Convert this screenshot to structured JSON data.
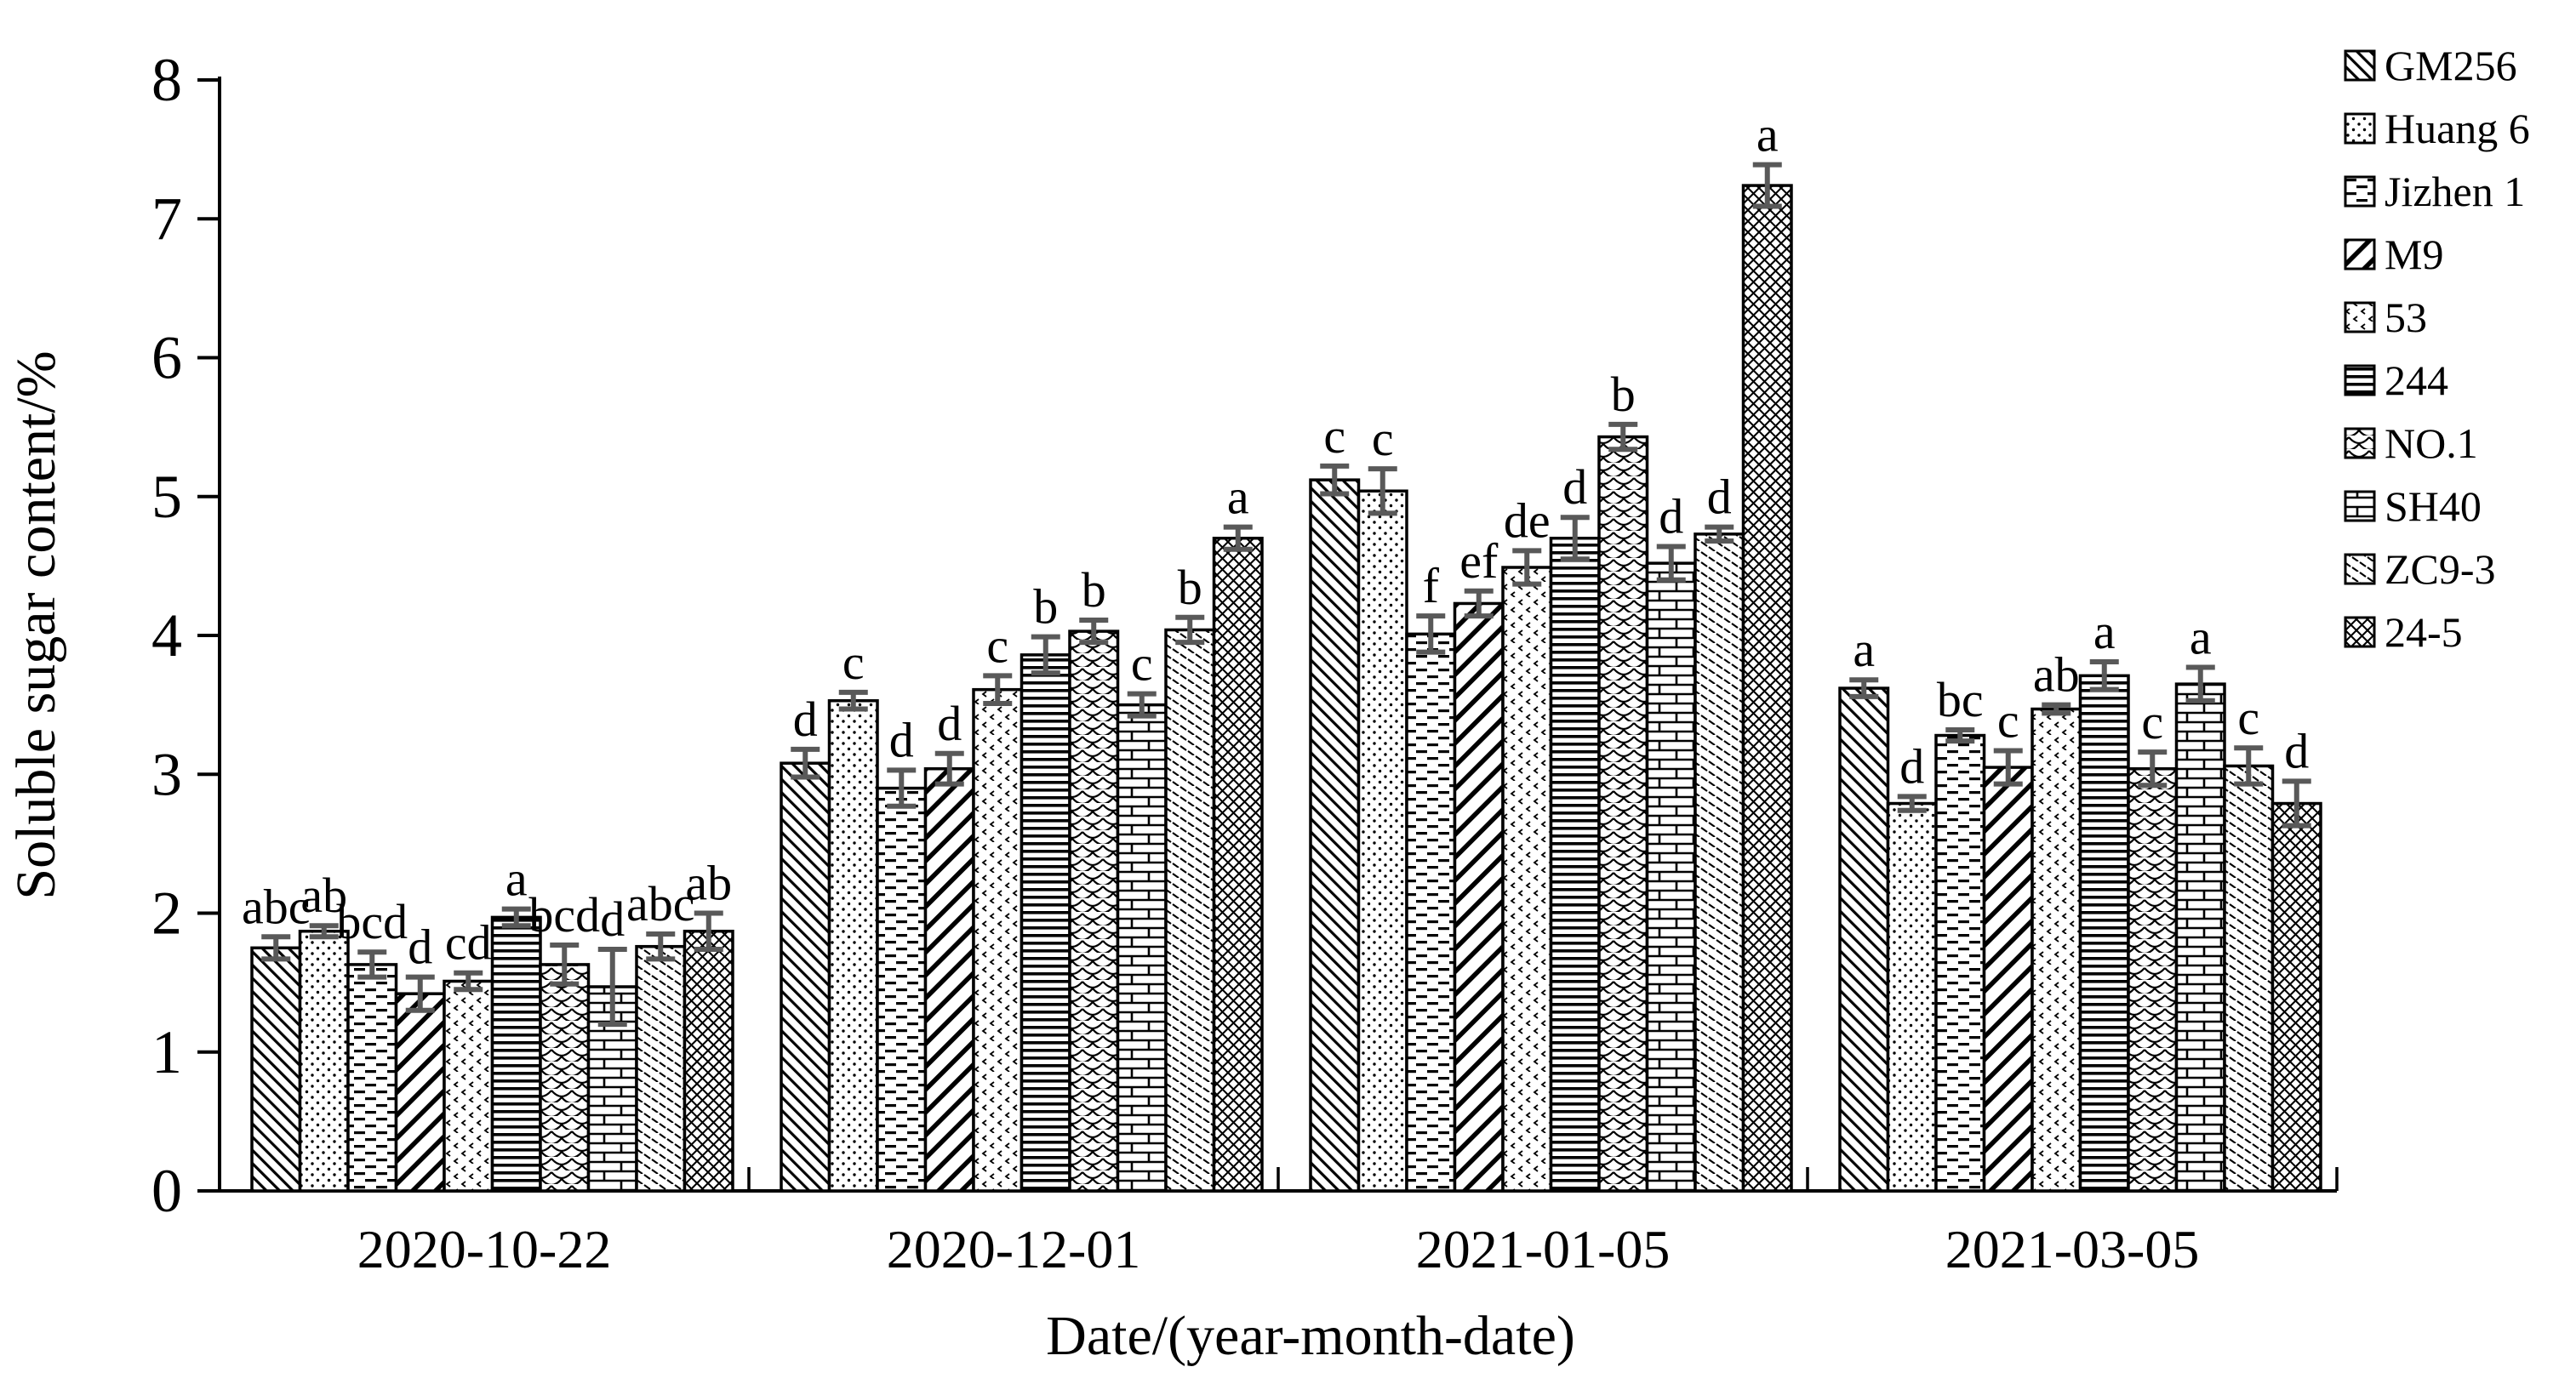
{
  "figure": {
    "background": "#ffffff",
    "axis_color": "#000000",
    "bar_fill": "#ffffff",
    "bar_stroke": "#000000",
    "error_bar_color": "#595959"
  },
  "chart_data": {
    "type": "bar",
    "title": "",
    "xlabel": "Date/(year-month-date)",
    "ylabel": "Soluble sugar content/%",
    "ylim": [
      0,
      8
    ],
    "y_ticks": [
      0,
      1,
      2,
      3,
      4,
      5,
      6,
      7,
      8
    ],
    "grid": false,
    "legend_position": "top-right",
    "categories": [
      "2020-10-22",
      "2020-12-01",
      "2021-01-05",
      "2021-03-05"
    ],
    "series": [
      {
        "name": "GM256",
        "pattern": "diagonal-up-stripes",
        "values": [
          1.75,
          3.08,
          5.12,
          3.62
        ],
        "errors": [
          0.08,
          0.1,
          0.1,
          0.06
        ],
        "sig_letters": [
          "abc",
          "d",
          "c",
          "a"
        ]
      },
      {
        "name": "Huang 6",
        "pattern": "fine-dots",
        "values": [
          1.87,
          3.53,
          5.04,
          2.79
        ],
        "errors": [
          0.04,
          0.06,
          0.16,
          0.05
        ],
        "sig_letters": [
          "ab",
          "c",
          "c",
          "d"
        ]
      },
      {
        "name": "Jizhen 1",
        "pattern": "horizontal-dashes",
        "values": [
          1.63,
          2.9,
          4.01,
          3.28
        ],
        "errors": [
          0.09,
          0.13,
          0.13,
          0.04
        ],
        "sig_letters": [
          "bcd",
          "d",
          "f",
          "bc"
        ]
      },
      {
        "name": "M9",
        "pattern": "diagonal-down-bold",
        "values": [
          1.42,
          3.04,
          4.23,
          3.05
        ],
        "errors": [
          0.12,
          0.11,
          0.09,
          0.12
        ],
        "sig_letters": [
          "d",
          "d",
          "ef",
          "c"
        ]
      },
      {
        "name": "53",
        "pattern": "sparse-chevrons",
        "values": [
          1.51,
          3.61,
          4.49,
          3.47
        ],
        "errors": [
          0.06,
          0.1,
          0.12,
          0.03
        ],
        "sig_letters": [
          "cd",
          "c",
          "de",
          "ab"
        ]
      },
      {
        "name": "244",
        "pattern": "horizontal-stripes",
        "values": [
          1.97,
          3.86,
          4.7,
          3.71
        ],
        "errors": [
          0.06,
          0.13,
          0.15,
          0.1
        ],
        "sig_letters": [
          "a",
          "b",
          "d",
          "a"
        ]
      },
      {
        "name": "NO.1",
        "pattern": "fishscale",
        "values": [
          1.63,
          4.03,
          5.43,
          3.04
        ],
        "errors": [
          0.14,
          0.08,
          0.09,
          0.12
        ],
        "sig_letters": [
          "bcd",
          "b",
          "b",
          "c"
        ]
      },
      {
        "name": "SH40",
        "pattern": "brick",
        "values": [
          1.47,
          3.5,
          4.52,
          3.65
        ],
        "errors": [
          0.27,
          0.08,
          0.12,
          0.12
        ],
        "sig_letters": [
          "d",
          "c",
          "d",
          "a"
        ]
      },
      {
        "name": "ZC9-3",
        "pattern": "diagonal-down-dashes",
        "values": [
          1.76,
          4.04,
          4.73,
          3.06
        ],
        "errors": [
          0.09,
          0.09,
          0.05,
          0.13
        ],
        "sig_letters": [
          "abc",
          "b",
          "d",
          "c"
        ]
      },
      {
        "name": "24-5",
        "pattern": "diamond-crosshatch",
        "values": [
          1.87,
          4.7,
          7.24,
          2.79
        ],
        "errors": [
          0.13,
          0.08,
          0.15,
          0.16
        ],
        "sig_letters": [
          "ab",
          "a",
          "a",
          "d"
        ]
      }
    ]
  }
}
